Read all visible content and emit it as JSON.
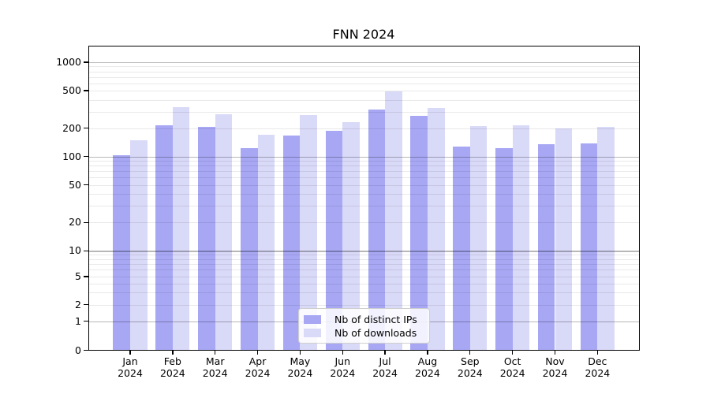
{
  "chart_data": {
    "type": "bar",
    "title": "FNN 2024",
    "categories": [
      "Jan",
      "Feb",
      "Mar",
      "Apr",
      "May",
      "Jun",
      "Jul",
      "Aug",
      "Sep",
      "Oct",
      "Nov",
      "Dec"
    ],
    "year_label": "2024",
    "series": [
      {
        "name": "Nb of distinct IPs",
        "color": "#a7a7f4",
        "values": [
          104,
          216,
          205,
          122,
          166,
          188,
          318,
          271,
          128,
          122,
          135,
          139
        ]
      },
      {
        "name": "Nb of downloads",
        "color": "#d9d9f8",
        "values": [
          148,
          334,
          283,
          172,
          275,
          232,
          495,
          326,
          211,
          215,
          200,
          207
        ]
      }
    ],
    "yscale": "symlog",
    "ytick_values": [
      1000,
      500,
      200,
      100,
      50,
      20,
      10,
      5,
      2,
      1,
      0
    ],
    "ytick_labels": [
      "1000",
      "500",
      "200",
      "100",
      "50",
      "20",
      "10",
      "5",
      "2",
      "1",
      "0"
    ],
    "ylim": [
      0,
      1500
    ],
    "grid": "both",
    "legend_position": "lower center",
    "colors": {
      "background": "#ffffff",
      "axis": "#000000",
      "grid_major": "#b5b5b5",
      "grid_minor": "#e8e8e8"
    }
  }
}
